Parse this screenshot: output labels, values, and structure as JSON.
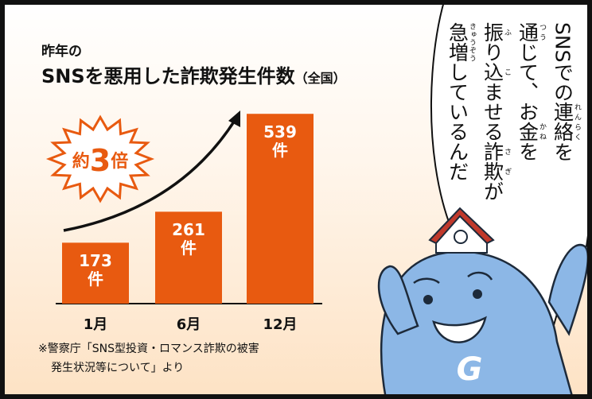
{
  "chart_data": {
    "type": "bar",
    "pretitle": "昨年の",
    "title": "SNSを悪用した詐欺発生件数",
    "title_note": "（全国）",
    "categories": [
      "1月",
      "6月",
      "12月"
    ],
    "values": [
      173,
      261,
      539
    ],
    "value_labels": [
      "173件",
      "261件",
      "539件"
    ],
    "color": "#e85a10",
    "annotation": [
      "約",
      "3",
      "倍"
    ],
    "source": [
      "※警察庁「SNS型投資・ロマンス詐欺の被害",
      "発生状況等について」より"
    ]
  },
  "speech": {
    "lines": [
      [
        {
          "text": "SNSでの"
        },
        {
          "base": "連絡",
          "ruby": "れんらく"
        },
        {
          "text": "を"
        }
      ],
      [
        {
          "base": "通",
          "ruby": "つう"
        },
        {
          "text": "じて、お"
        },
        {
          "base": "金",
          "ruby": "かね"
        },
        {
          "text": "を"
        }
      ],
      [
        {
          "base": "振",
          "ruby": "ふ"
        },
        {
          "text": "り"
        },
        {
          "base": "込",
          "ruby": "こ"
        },
        {
          "text": "ませる"
        },
        {
          "base": "詐欺",
          "ruby": "さぎ"
        },
        {
          "text": "が"
        }
      ],
      [
        {
          "base": "急増",
          "ruby": "きゅうぞう"
        },
        {
          "text": "しているんだ"
        }
      ]
    ]
  },
  "mascot": {
    "label": "G"
  }
}
